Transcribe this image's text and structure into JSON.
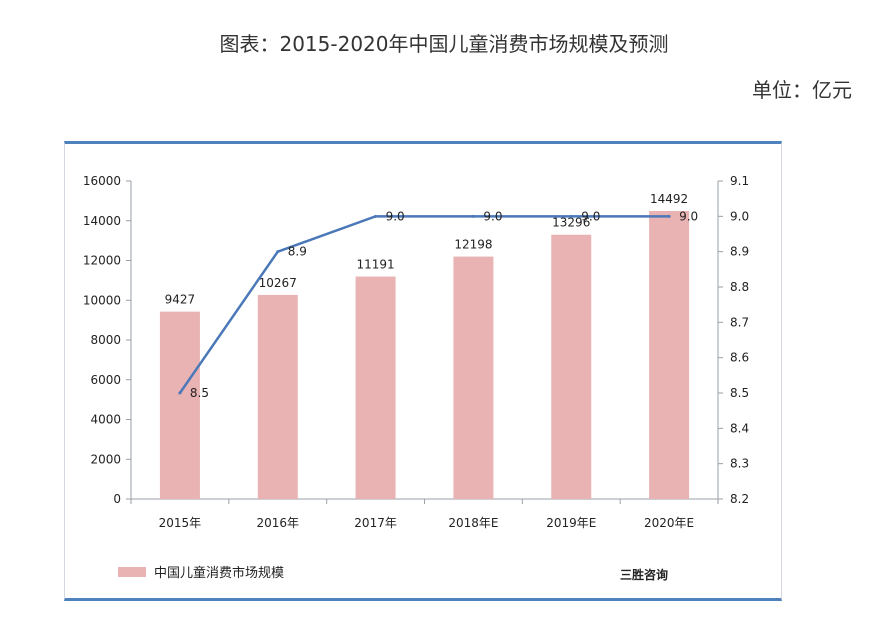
{
  "title": "图表：2015-2020年中国儿童消费市场规模及预测",
  "unit": "单位：亿元",
  "source": "三胜咨询",
  "colors": {
    "bar": "#e9b3b3",
    "line": "#4a78b8",
    "axis": "#9aa0a8"
  },
  "chart_data": {
    "type": "bar",
    "categories": [
      "2015年",
      "2016年",
      "2017年",
      "2018年E",
      "2019年E",
      "2020年E"
    ],
    "series": [
      {
        "name": "中国儿童消费市场规模",
        "type": "bar",
        "axis": "left",
        "values": [
          9427,
          10267,
          11191,
          12198,
          13296,
          14492
        ]
      },
      {
        "type": "line",
        "axis": "right",
        "values": [
          8.5,
          8.9,
          9.0,
          9.0,
          9.0,
          9.0
        ],
        "labels": [
          "8.5",
          "8.9",
          "9.0",
          "9.0",
          "9.0",
          "9.0"
        ]
      }
    ],
    "y_left": {
      "min": 0,
      "max": 16000,
      "step": 2000,
      "ticks": [
        "0",
        "2000",
        "4000",
        "6000",
        "8000",
        "10000",
        "12000",
        "14000",
        "16000"
      ]
    },
    "y_right": {
      "min": 8.2,
      "max": 9.1,
      "step": 0.1,
      "ticks": [
        "8.2",
        "8.3",
        "8.4",
        "8.5",
        "8.6",
        "8.7",
        "8.8",
        "8.9",
        "9.0",
        "9.1"
      ]
    },
    "legend": {
      "position": "bottom-left",
      "entries": [
        "中国儿童消费市场规模"
      ]
    },
    "grid": false
  }
}
